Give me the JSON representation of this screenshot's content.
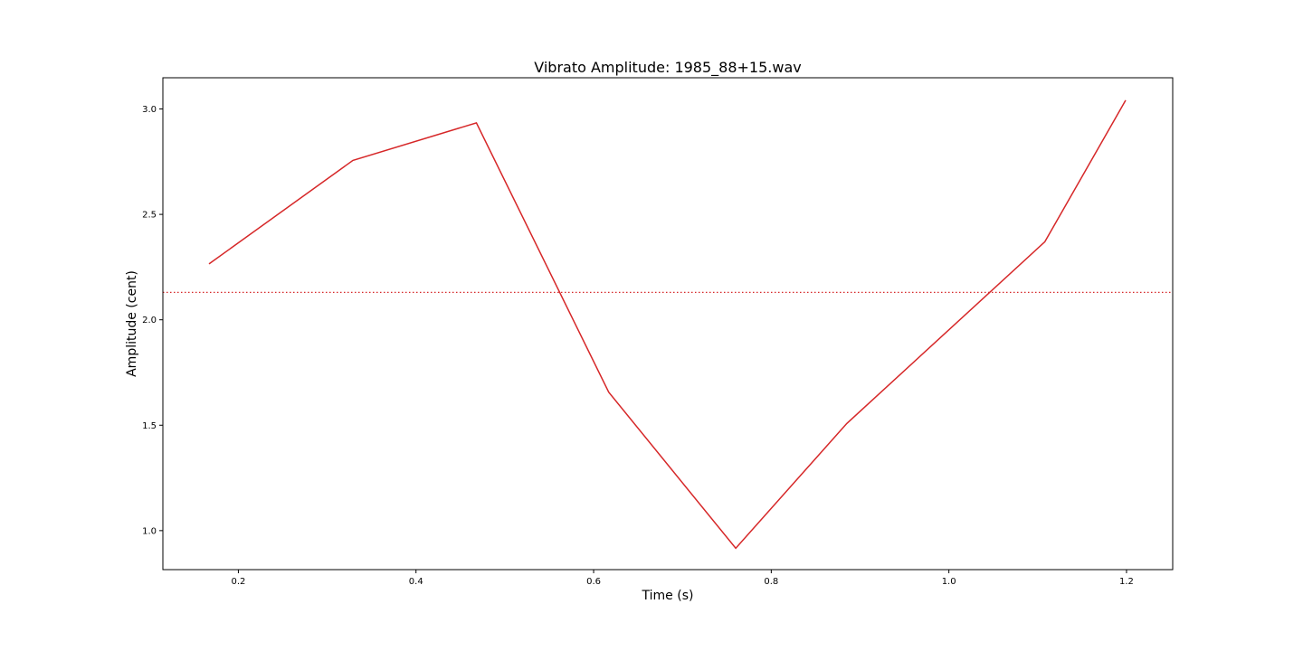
{
  "chart_data": {
    "type": "line",
    "title": "Vibrato Amplitude: 1985_88+15.wav",
    "xlabel": "Time (s)",
    "ylabel": "Amplitude (cent)",
    "xlim": [
      0.115,
      1.252
    ],
    "ylim": [
      0.815,
      3.148
    ],
    "xticks": [
      0.2,
      0.4,
      0.6,
      0.8,
      1.0,
      1.2
    ],
    "xtick_labels": [
      "0.2",
      "0.4",
      "0.6",
      "0.8",
      "1.0",
      "1.2"
    ],
    "yticks": [
      1.0,
      1.5,
      2.0,
      2.5,
      3.0
    ],
    "ytick_labels": [
      "1.0",
      "1.5",
      "2.0",
      "2.5",
      "3.0"
    ],
    "grid": false,
    "series": [
      {
        "style": "solid",
        "color": "#d62728",
        "x": [
          0.167,
          0.329,
          0.468,
          0.617,
          0.76,
          0.885,
          1.108,
          1.199
        ],
        "y": [
          2.265,
          2.756,
          2.934,
          1.657,
          0.916,
          1.508,
          2.37,
          3.041
        ]
      }
    ],
    "reference_lines": [
      {
        "orientation": "horizontal",
        "y": 2.13,
        "style": "dotted",
        "color": "#d62728"
      }
    ]
  }
}
